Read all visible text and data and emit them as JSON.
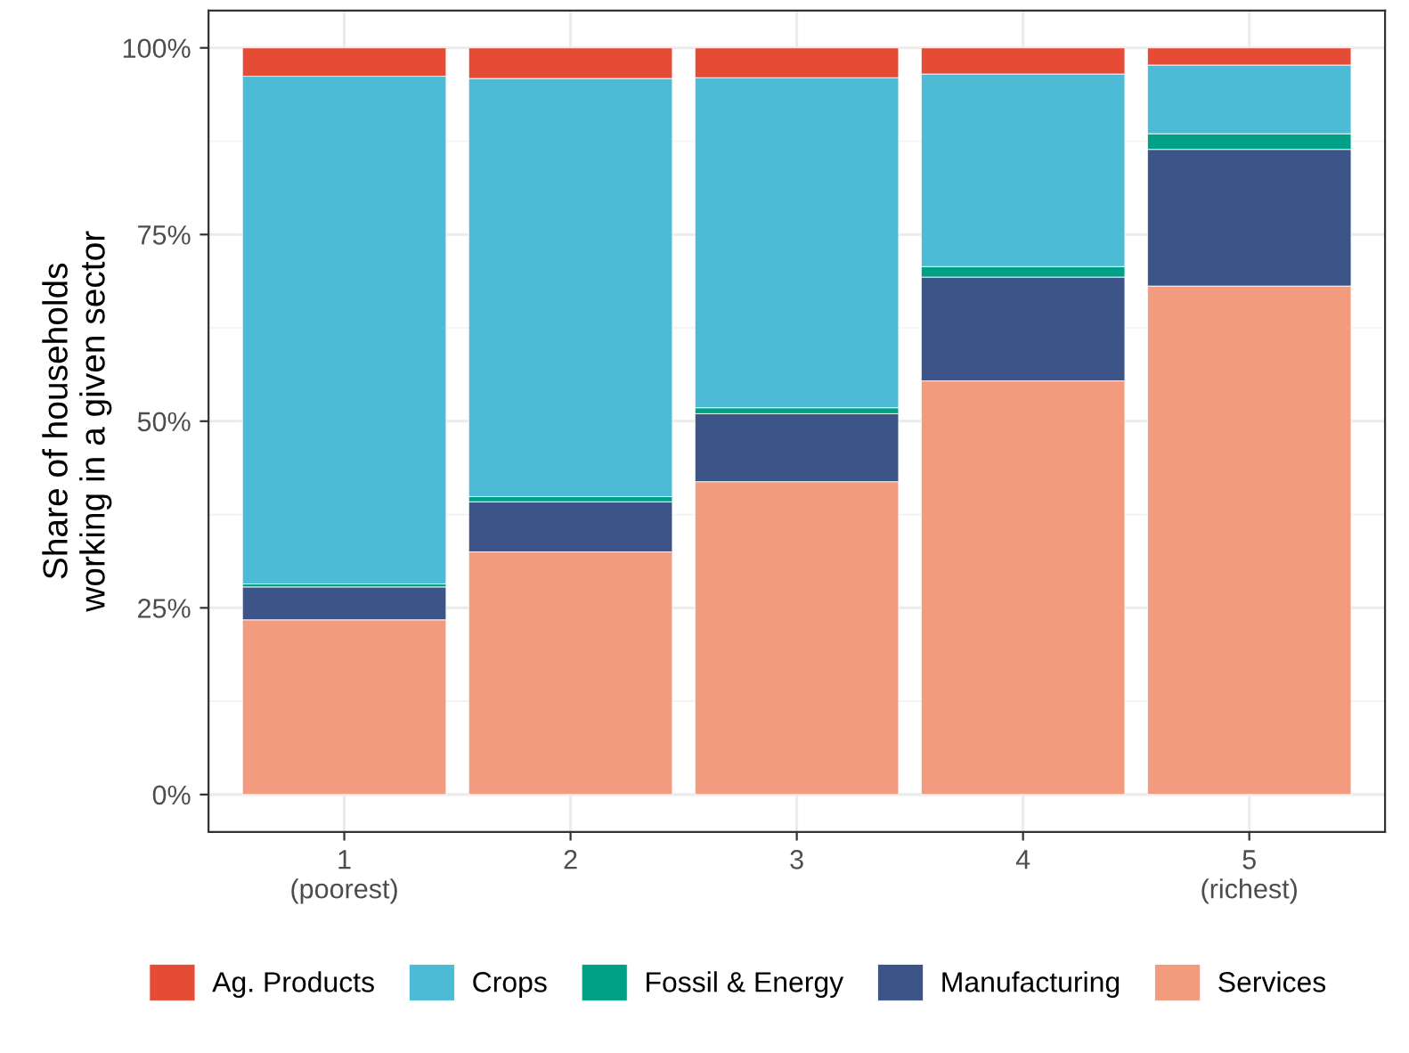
{
  "chart_data": {
    "type": "bar",
    "stacked": true,
    "ylabel": "Share of households\nworking in a given sector",
    "categories": [
      "1\n(poorest)",
      "2",
      "3",
      "4",
      "5\n(richest)"
    ],
    "series": [
      {
        "name": "Services",
        "color": "#f39b7f",
        "values": [
          23.4,
          32.5,
          41.9,
          55.4,
          68.1
        ]
      },
      {
        "name": "Manufacturing",
        "color": "#3c5488",
        "values": [
          4.4,
          6.7,
          9.1,
          13.9,
          18.3
        ]
      },
      {
        "name": "Fossil & Energy",
        "color": "#00a087",
        "values": [
          0.4,
          0.7,
          0.8,
          1.4,
          2.1
        ]
      },
      {
        "name": "Crops",
        "color": "#4dbbd5",
        "values": [
          68.0,
          56.0,
          44.2,
          25.8,
          9.2
        ]
      },
      {
        "name": "Ag. Products",
        "color": "#e64b35",
        "values": [
          3.8,
          4.1,
          4.0,
          3.5,
          2.3
        ]
      }
    ],
    "ylim": [
      -5,
      105
    ],
    "yticks": [
      {
        "value": 0,
        "label": "0%"
      },
      {
        "value": 25,
        "label": "25%"
      },
      {
        "value": 50,
        "label": "50%"
      },
      {
        "value": 75,
        "label": "75%"
      },
      {
        "value": 100,
        "label": "100%"
      }
    ],
    "grid": true,
    "legend": "bottom"
  }
}
